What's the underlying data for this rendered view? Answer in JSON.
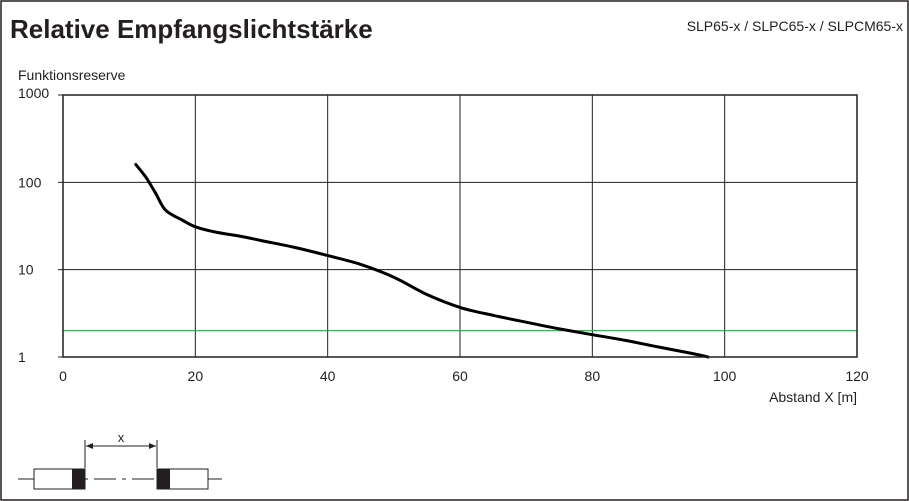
{
  "header": {
    "title": "Relative Empfangslichtstärke",
    "models": "SLP65-x / SLPC65-x / SLPCM65-x"
  },
  "colors": {
    "curve": "#000000",
    "threshold": "#2e9e4f",
    "grid": "#231f20",
    "frame": "#231f20"
  },
  "chart_data": {
    "type": "line",
    "title": "Relative Empfangslichtstärke",
    "ylabel": "Funktionsreserve",
    "xlabel": "Abstand X [m]",
    "xlim": [
      0,
      120
    ],
    "ylim": [
      1,
      1000
    ],
    "y_scale": "log",
    "grid": true,
    "x_ticks": [
      0,
      20,
      40,
      60,
      80,
      100,
      120
    ],
    "y_ticks": [
      1,
      10,
      100,
      1000
    ],
    "x_tick_labels": [
      "0",
      "20",
      "40",
      "60",
      "80",
      "100",
      "120"
    ],
    "y_tick_labels": [
      "1",
      "10",
      "100",
      "1000"
    ],
    "series": [
      {
        "color": "#000000",
        "x": [
          11,
          12.5,
          14,
          15.5,
          18,
          20,
          23,
          27,
          30,
          35,
          40,
          45,
          50,
          55,
          60,
          65,
          70,
          75,
          80,
          85,
          90,
          95,
          97.5
        ],
        "y": [
          160,
          115,
          75,
          48,
          37,
          31,
          27,
          24,
          21.5,
          18,
          14.5,
          11.5,
          8.2,
          5.2,
          3.7,
          3.0,
          2.5,
          2.1,
          1.8,
          1.55,
          1.3,
          1.1,
          1.0
        ]
      }
    ],
    "threshold": {
      "y": 2,
      "color": "#2e9e4f"
    }
  },
  "diagram": {
    "distance_label": "x"
  }
}
